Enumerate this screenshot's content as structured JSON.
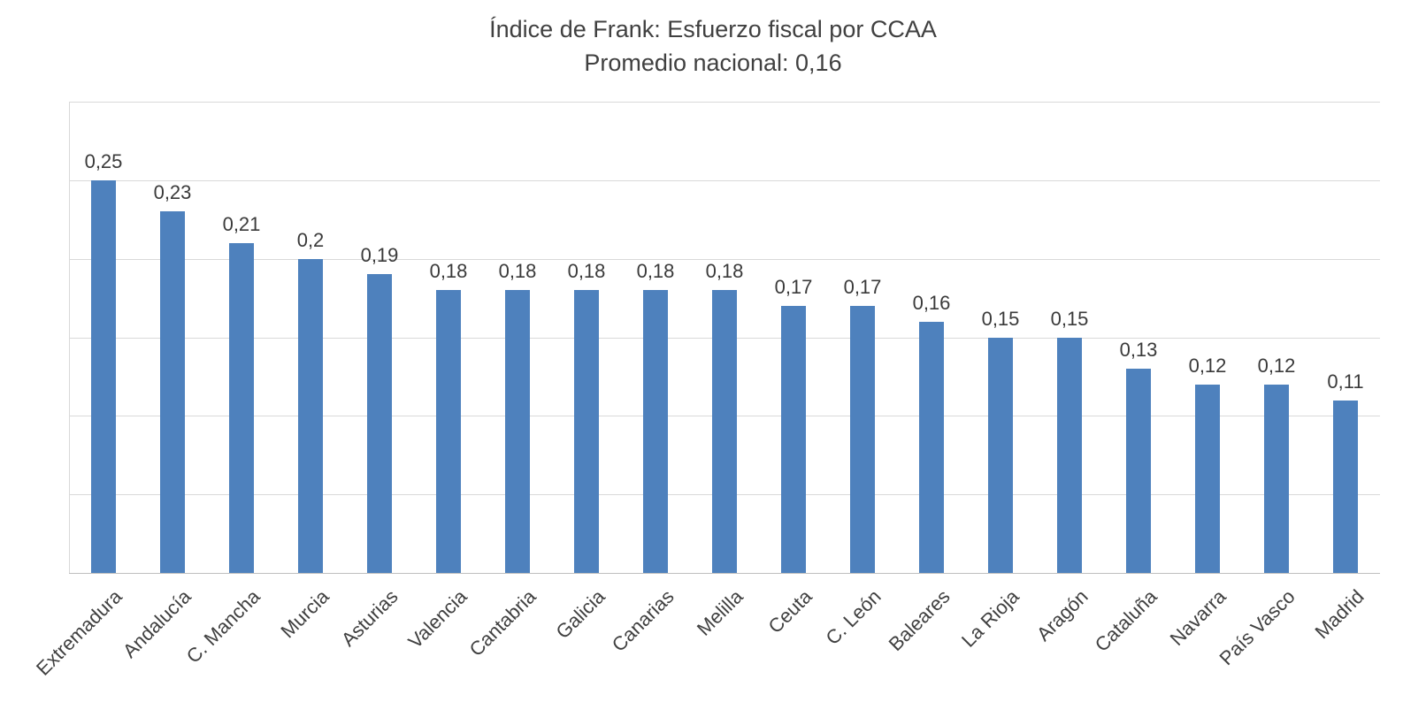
{
  "chart": {
    "title_line1": "Índice de Frank: Esfuerzo fiscal por CCAA",
    "title_line2": "Promedio nacional: 0,16"
  },
  "chart_data": {
    "type": "bar",
    "title": "Índice de Frank: Esfuerzo fiscal por CCAA",
    "subtitle": "Promedio nacional: 0,16",
    "categories": [
      "Extremadura",
      "Andalucía",
      "C. Mancha",
      "Murcia",
      "Asturias",
      "Valencia",
      "Cantabria",
      "Galicia",
      "Canarias",
      "Melilla",
      "Ceuta",
      "C. León",
      "Baleares",
      "La Rioja",
      "Aragón",
      "Cataluña",
      "Navarra",
      "País Vasco",
      "Madrid"
    ],
    "values": [
      0.25,
      0.23,
      0.21,
      0.2,
      0.19,
      0.18,
      0.18,
      0.18,
      0.18,
      0.18,
      0.17,
      0.17,
      0.16,
      0.15,
      0.15,
      0.13,
      0.12,
      0.12,
      0.11
    ],
    "value_labels": [
      "0,25",
      "0,23",
      "0,21",
      "0,2",
      "0,19",
      "0,18",
      "0,18",
      "0,18",
      "0,18",
      "0,18",
      "0,17",
      "0,17",
      "0,16",
      "0,15",
      "0,15",
      "0,13",
      "0,12",
      "0,12",
      "0,11"
    ],
    "xlabel": "",
    "ylabel": "",
    "ylim": [
      0,
      0.3
    ],
    "grid_step": 0.05,
    "grid": true,
    "legend": "none",
    "y_tick_labels_visible": false,
    "bar_color": "#4E81BD",
    "gridline_color": "#D9D9D9",
    "baseline_color": "#BFBFBF",
    "text_color": "#404040"
  }
}
